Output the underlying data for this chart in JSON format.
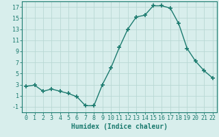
{
  "x": [
    0,
    1,
    2,
    3,
    4,
    5,
    6,
    7,
    8,
    9,
    10,
    11,
    12,
    13,
    14,
    15,
    16,
    17,
    18,
    19,
    20,
    21,
    22
  ],
  "y": [
    2.7,
    2.9,
    1.8,
    2.2,
    1.8,
    1.4,
    0.8,
    -0.8,
    -0.8,
    3.0,
    6.0,
    9.7,
    13.0,
    15.2,
    15.5,
    17.2,
    17.2,
    16.8,
    14.0,
    9.5,
    7.2,
    5.5,
    4.2
  ],
  "line_color": "#1a7a6e",
  "marker": "+",
  "markersize": 4,
  "markeredgewidth": 1.2,
  "linewidth": 1.0,
  "background_color": "#d8eeec",
  "grid_color": "#b8d8d4",
  "xlabel": "Humidex (Indice chaleur)",
  "xlabel_fontsize": 7,
  "tick_fontsize": 6,
  "ylim": [
    -2,
    18
  ],
  "xlim": [
    -0.5,
    22.5
  ],
  "yticks": [
    -1,
    1,
    3,
    5,
    7,
    9,
    11,
    13,
    15,
    17
  ],
  "xticks": [
    0,
    1,
    2,
    3,
    4,
    5,
    6,
    7,
    8,
    9,
    10,
    11,
    12,
    13,
    14,
    15,
    16,
    17,
    18,
    19,
    20,
    21,
    22
  ]
}
